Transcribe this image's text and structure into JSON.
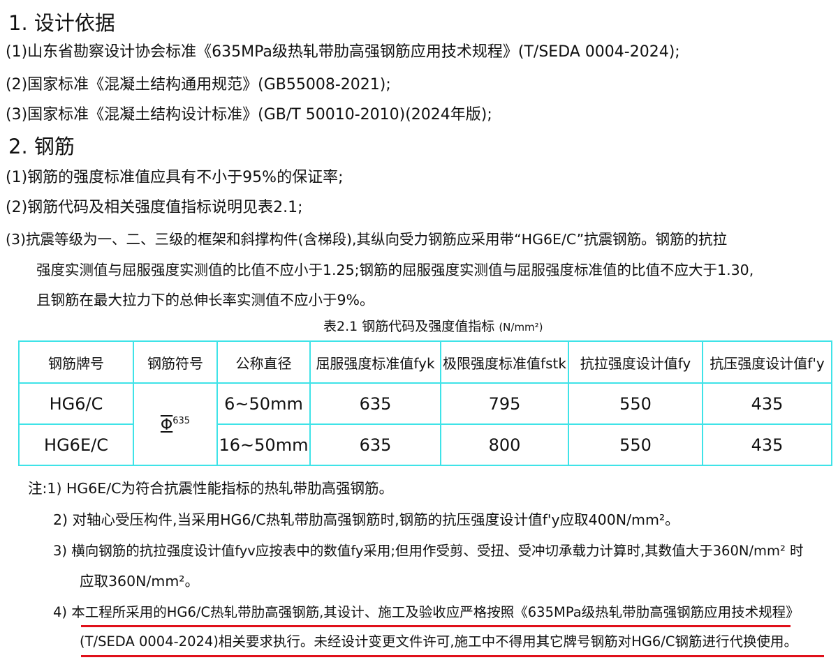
{
  "section1": {
    "title": "1. 设计依据",
    "items": [
      "(1)山东省勘察设计协会标准《635MPa级热轧带肋高强钢筋应用技术规程》(T/SEDA 0004-2024);",
      "(2)国家标准《混凝土结构通用规范》(GB55008-2021);",
      "(3)国家标准《混凝土结构设计标准》(GB/T 50010-2010)(2024年版);"
    ]
  },
  "section2": {
    "title": "2. 钢筋",
    "items": [
      "(1)钢筋的强度标准值应具有不小于95%的保证率;",
      "(2)钢筋代码及相关强度值指标说明见表2.1;",
      "(3)抗震等级为一、二、三级的框架和斜撑构件(含梯段),其纵向受力钢筋应采用带“HG6E/C”抗震钢筋。钢筋的抗拉",
      "强度实测值与屈服强度实测值的比值不应小于1.25;钢筋的屈服强度实测值与屈服强度标准值的比值不应大于1.30,",
      "且钢筋在最大拉力下的总伸长率实测值不应小于9%。"
    ]
  },
  "table": {
    "caption": "表2.1  钢筋代码及强度值指标",
    "unit": "(N/mm²)",
    "headers": [
      "钢筋牌号",
      "钢筋符号",
      "公称直径",
      "屈服强度标准值fyk",
      "极限强度标准值fstk",
      "抗拉强度设计值fy",
      "抗压强度设计值f'y"
    ],
    "symbol": "Φ",
    "symbol_sup": "635",
    "rows": [
      [
        "HG6/C",
        "6~50mm",
        "635",
        "795",
        "550",
        "435"
      ],
      [
        "HG6E/C",
        "16~50mm",
        "635",
        "800",
        "550",
        "435"
      ]
    ]
  },
  "notes": [
    "注:1) HG6E/C为符合抗震性能指标的热轧带肋高强钢筋。",
    "2) 对轴心受压构件,当采用HG6/C热轧带肋高强钢筋时,钢筋的抗压强度设计值f'y应取400N/mm²。",
    "3) 横向钢筋的抗拉强度设计值fyv应按表中的数值fy采用;但用作受剪、受扭、受冲切承载力计算时,其数值大于360N/mm² 时",
    "应取360N/mm²。",
    "4) 本工程所采用的HG6/C热轧带肋高强钢筋,其设计、施工及验收应严格按照《635MPa级热轧带肋高强钢筋应用技术规程》",
    "(T/SEDA 0004-2024)相关要求执行。未经设计变更文件许可,施工中不得用其它牌号钢筋对HG6/C钢筋进行代换使用。"
  ],
  "colors": {
    "table_border": "#3fe3e8",
    "underline": "#e0101a"
  }
}
